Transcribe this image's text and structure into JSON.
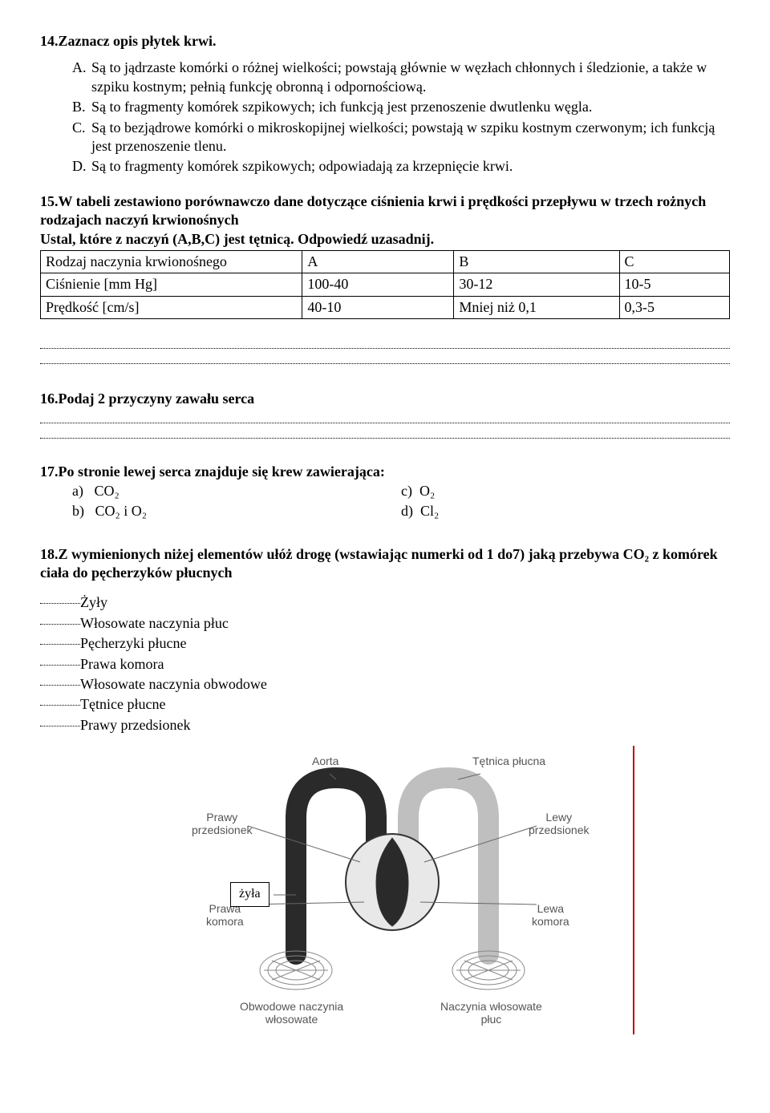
{
  "q14": {
    "title": "14.Zaznacz opis płytek krwi.",
    "options": [
      {
        "letter": "A.",
        "text": "Są to jądrzaste komórki o różnej wielkości; powstają głównie w węzłach chłonnych i śledzionie, a także w szpiku kostnym; pełnią funkcję obronną i odpornościową."
      },
      {
        "letter": "B.",
        "text": "Są to fragmenty komórek szpikowych; ich funkcją jest przenoszenie dwutlenku węgla."
      },
      {
        "letter": "C.",
        "text": "Są to bezjądrowe komórki o mikroskopijnej wielkości; powstają w szpiku kostnym czerwonym; ich funkcją jest przenoszenie tlenu."
      },
      {
        "letter": "D.",
        "text": " Są to fragmenty komórek szpikowych; odpowiadają za krzepnięcie krwi."
      }
    ]
  },
  "q15": {
    "intro": "15.W tabeli zestawiono porównawczo dane dotyczące ciśnienia krwi i prędkości przepływu w trzech rożnych rodzajach naczyń krwionośnych",
    "instr": "Ustal, które z naczyń (A,B,C) jest tętnicą. Odpowiedź uzasadnij.",
    "table": {
      "headers": [
        "Rodzaj naczynia krwionośnego",
        "A",
        "B",
        "C"
      ],
      "rows": [
        [
          "Ciśnienie [mm Hg]",
          "100-40",
          "30-12",
          "10-5"
        ],
        [
          "Prędkość [cm/s]",
          "40-10",
          "Mniej niż 0,1",
          "0,3-5"
        ]
      ],
      "col_widths": [
        "38%",
        "22%",
        "24%",
        "16%"
      ]
    }
  },
  "q16": {
    "title": "16.Podaj 2 przyczyny zawału serca"
  },
  "q17": {
    "title": "17.Po stronie lewej serca znajduje się krew zawierająca:",
    "left": [
      {
        "label": "a)",
        "txt": "CO₂"
      },
      {
        "label": "b)",
        "txt": "CO₂ i O₂"
      }
    ],
    "right": [
      {
        "label": "c)",
        "txt": "O₂"
      },
      {
        "label": "d)",
        "txt": "Cl₂"
      }
    ]
  },
  "q18": {
    "title": "18.Z wymienionych niżej elementów ułóż drogę (wstawiając numerki od 1 do7) jaką przebywa CO₂ z komórek ciała do pęcherzyków płucnych",
    "items": [
      "Żyły",
      "Włosowate naczynia płuc",
      "Pęcherzyki płucne",
      "Prawa komora",
      "Włosowate naczynia obwodowe",
      "Tętnice płucne",
      "Prawy przedsionek"
    ]
  },
  "diagram": {
    "labels": {
      "aorta": "Aorta",
      "tetnica_plucna": "Tętnica płucna",
      "prawy_przedsionek": "Prawy\nprzedsionek",
      "lewy_przedsionek": "Lewy\nprzedsionek",
      "prawa_komora": "Prawa\nkomora",
      "lewa_komora": "Lewa\nkomora",
      "obwodowe": "Obwodowe naczynia\nwłosowate",
      "plucne_wl": "Naczynia włosowate\npłuc",
      "zyla": "żyła"
    },
    "colors": {
      "outline": "#333333",
      "dark_fill": "#2a2a2a",
      "light_fill": "#bfbfbf",
      "mesh": "#888888",
      "lead": "#666666"
    }
  }
}
